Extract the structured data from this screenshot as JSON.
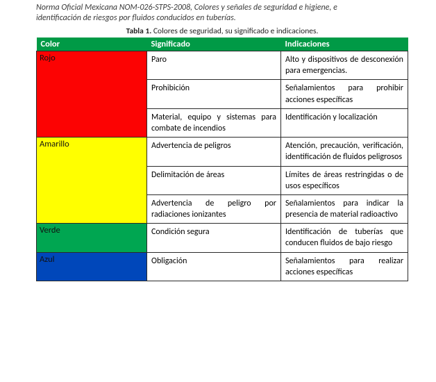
{
  "intro_line1": "Norma Oficial Mexicana NOM-026-STPS-2008, Colores y señales de seguridad e higiene, e",
  "intro_line2": "identificación de riesgos por fluidos conducidos en tuberías.",
  "caption_label": "Tabla 1.",
  "caption_text": " Colores de seguridad, su significado e indicaciones.",
  "header_bg": "#009a46",
  "header_color_label": "Color",
  "header_sig_label": "Significado",
  "header_ind_label": "Indicaciones",
  "text_color": "#222222",
  "border_color": "#2a2a2a",
  "colors": {
    "rojo": {
      "name": "Rojo",
      "hex": "#fc0303",
      "text": "#111111"
    },
    "amarillo": {
      "name": "Amarillo",
      "hex": "#ffff00",
      "text": "#111111"
    },
    "verde": {
      "name": "Verde",
      "hex": "#00a651",
      "text": "#111111"
    },
    "azul": {
      "name": "Azul",
      "hex": "#0047ba",
      "text": "#111111"
    }
  },
  "rows": {
    "r1": {
      "sig": "Paro",
      "ind": "Alto y dispositivos de desconexión para emergencias."
    },
    "r2": {
      "sig": "Prohibición",
      "ind": "Señalamientos para prohibir acciones específicas"
    },
    "r3": {
      "sig": "Material, equipo y sistemas para combate de incendios",
      "ind": "Identificación y localización"
    },
    "r4": {
      "sig": "Advertencia de peligros",
      "ind": "Atención, precaución, verificación, identificación de fluidos peligrosos"
    },
    "r5": {
      "sig": "Delimitación de áreas",
      "ind": "Límites de áreas restringidas o de usos específicos"
    },
    "r6": {
      "sig": "Advertencia de peligro por radiaciones ionizantes",
      "ind": "Señalamientos para indicar la presencia de material radioactivo"
    },
    "r7": {
      "sig": "Condición segura",
      "ind": "Identificación de tuberías que conducen fluidos de bajo riesgo"
    },
    "r8": {
      "sig": "Obligación",
      "ind": "Señalamientos para realizar acciones específicas"
    }
  }
}
